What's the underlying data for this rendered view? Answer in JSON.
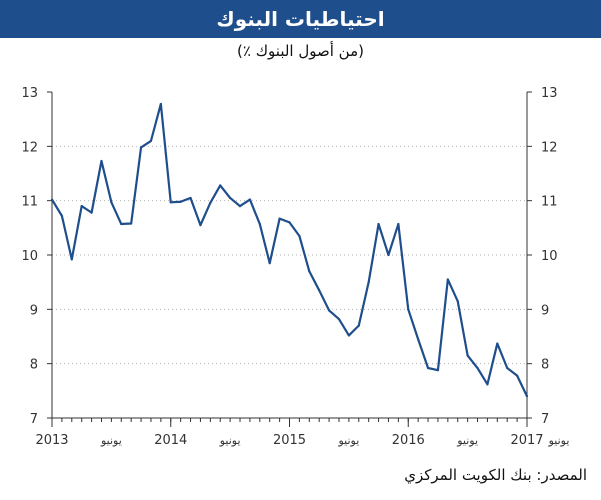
{
  "header": {
    "title": "احتياطيات البنوك",
    "subtitle": "(٪ من أصول البنوك)"
  },
  "footer": {
    "source_label": "المصدر:",
    "source_value": "بنك الكويت المركزي"
  },
  "colors": {
    "title_bg": "#1f4e8c",
    "line": "#1f4e8c",
    "axis": "#333333"
  },
  "chart_data": {
    "type": "line",
    "title": "احتياطيات البنوك",
    "subtitle": "(٪ من أصول البنوك)",
    "xlabel": "",
    "ylabel": "",
    "ylim": [
      7,
      13
    ],
    "yticks": [
      7,
      8,
      9,
      10,
      11,
      12,
      13
    ],
    "y_axis_left": true,
    "y_axis_right": true,
    "grid": "horizontal-dotted",
    "xlim": [
      "2013-01",
      "2017-01"
    ],
    "x_major_ticks": [
      {
        "date": "2013-01",
        "label": "2013"
      },
      {
        "date": "2014-01",
        "label": "2014"
      },
      {
        "date": "2015-01",
        "label": "2015"
      },
      {
        "date": "2016-01",
        "label": "2016"
      },
      {
        "date": "2017-01",
        "label": "2017"
      }
    ],
    "x_minor_ticks": [
      {
        "date": "2013-07",
        "label": "يونيو"
      },
      {
        "date": "2014-07",
        "label": "يونيو"
      },
      {
        "date": "2015-07",
        "label": "يونيو"
      },
      {
        "date": "2016-07",
        "label": "يونيو"
      },
      {
        "date": "2017-07",
        "label": "يونيو"
      }
    ],
    "series": [
      {
        "x": [
          "2013-01",
          "2013-02",
          "2013-03",
          "2013-04",
          "2013-05",
          "2013-06",
          "2013-07",
          "2013-08",
          "2013-09",
          "2013-10",
          "2013-11",
          "2013-12",
          "2014-01",
          "2014-02",
          "2014-03",
          "2014-04",
          "2014-05",
          "2014-06",
          "2014-07",
          "2014-08",
          "2014-09",
          "2014-10",
          "2014-11",
          "2014-12",
          "2015-01",
          "2015-02",
          "2015-03",
          "2015-04",
          "2015-05",
          "2015-06",
          "2015-07",
          "2015-08",
          "2015-09",
          "2015-10",
          "2015-11",
          "2015-12",
          "2016-01",
          "2016-02",
          "2016-03",
          "2016-04",
          "2016-05",
          "2016-06",
          "2016-07",
          "2016-08",
          "2016-09",
          "2016-10",
          "2016-11",
          "2016-12",
          "2017-01"
        ],
        "values": [
          11.02,
          10.72,
          9.92,
          10.9,
          10.78,
          11.73,
          10.97,
          10.57,
          10.58,
          11.98,
          12.1,
          12.78,
          10.97,
          10.98,
          11.05,
          10.55,
          10.96,
          11.28,
          11.05,
          10.9,
          11.02,
          10.57,
          9.85,
          10.67,
          10.6,
          10.35,
          9.7,
          9.35,
          8.98,
          8.82,
          8.52,
          8.7,
          9.5,
          10.57,
          10.0,
          10.57,
          9.0,
          8.45,
          7.92,
          7.88,
          9.55,
          9.15,
          8.15,
          7.92,
          7.62,
          8.37,
          7.92,
          7.78,
          7.4
        ]
      }
    ]
  }
}
